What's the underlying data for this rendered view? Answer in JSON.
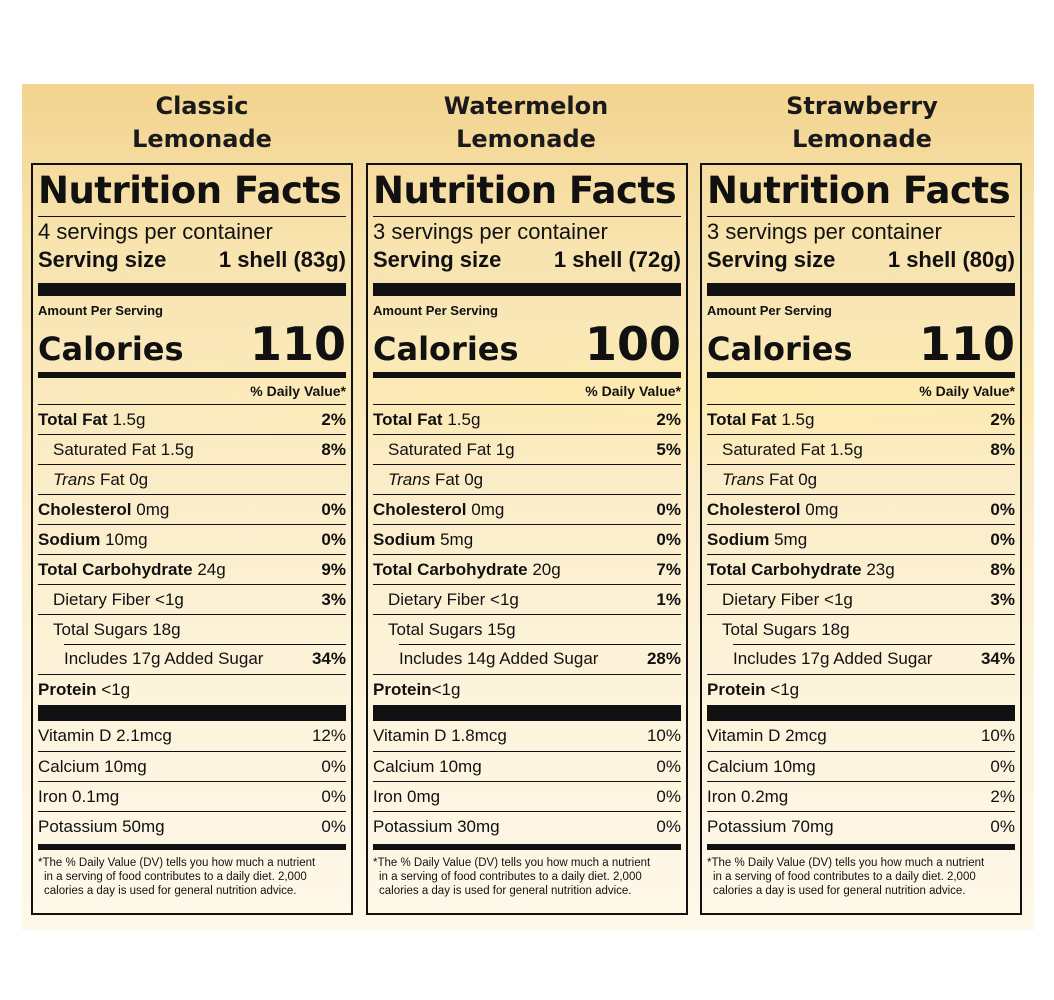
{
  "products": [
    {
      "heading": "Classic\nLemonade",
      "title": "Nutrition Facts",
      "servings_per_container": "4 servings per container",
      "serving_size_label": "Serving size",
      "serving_size_value": "1 shell (83g)",
      "amount_per_serving": "Amount Per Serving",
      "calories_label": "Calories",
      "calories": "110",
      "daily_value_header": "% Daily Value*",
      "nutrients": {
        "total_fat": {
          "label": "Total Fat",
          "amount": "1.5g",
          "dv": "2%"
        },
        "saturated_fat": {
          "label": "Saturated Fat 1.5g",
          "dv": "8%"
        },
        "trans_fat": {
          "label_italic": "Trans",
          "label_rest": "Fat 0g"
        },
        "cholesterol": {
          "label": "Cholesterol",
          "amount": "0mg",
          "dv": "0%"
        },
        "sodium": {
          "label": "Sodium",
          "amount": "10mg",
          "dv": "0%"
        },
        "total_carbohydrate": {
          "label": "Total Carbohydrate",
          "amount": "24g",
          "dv": "9%"
        },
        "dietary_fiber": {
          "label": "Dietary Fiber <1g",
          "dv": "3%"
        },
        "total_sugars": {
          "label": "Total Sugars 18g"
        },
        "added_sugar": {
          "label": "Includes 17g Added Sugar",
          "dv": "34%"
        },
        "protein": {
          "label": "Protein",
          "amount": "<1g"
        }
      },
      "vitamins": [
        {
          "label": "Vitamin D 2.1mcg",
          "dv": "12%"
        },
        {
          "label": "Calcium 10mg",
          "dv": "0%"
        },
        {
          "label": "Iron 0.1mg",
          "dv": "0%"
        },
        {
          "label": "Potassium 50mg",
          "dv": "0%"
        }
      ],
      "footnote": [
        "*The % Daily Value (DV) tells you how much a nutrient",
        "in a serving of food contributes to a daily diet. 2,000",
        "calories a day is used for general nutrition advice."
      ]
    },
    {
      "heading": "Watermelon\nLemonade",
      "title": "Nutrition Facts",
      "servings_per_container": "3 servings per container",
      "serving_size_label": "Serving size",
      "serving_size_value": "1 shell (72g)",
      "amount_per_serving": "Amount Per Serving",
      "calories_label": "Calories",
      "calories": "100",
      "daily_value_header": "% Daily Value*",
      "nutrients": {
        "total_fat": {
          "label": "Total Fat",
          "amount": "1.5g",
          "dv": "2%"
        },
        "saturated_fat": {
          "label": "Saturated Fat 1g",
          "dv": "5%"
        },
        "trans_fat": {
          "label_italic": "Trans",
          "label_rest": "Fat 0g"
        },
        "cholesterol": {
          "label": "Cholesterol",
          "amount": "0mg",
          "dv": "0%"
        },
        "sodium": {
          "label": "Sodium",
          "amount": "5mg",
          "dv": "0%"
        },
        "total_carbohydrate": {
          "label": "Total Carbohydrate",
          "amount": "20g",
          "dv": "7%"
        },
        "dietary_fiber": {
          "label": "Dietary Fiber <1g",
          "dv": "1%"
        },
        "total_sugars": {
          "label": "Total Sugars 15g"
        },
        "added_sugar": {
          "label": "Includes 14g Added Sugar",
          "dv": "28%"
        },
        "protein": {
          "label": "Protein",
          "amount": "<1g"
        }
      },
      "vitamins": [
        {
          "label": "Vitamin D 1.8mcg",
          "dv": "10%"
        },
        {
          "label": "Calcium 10mg",
          "dv": "0%"
        },
        {
          "label": "Iron 0mg",
          "dv": "0%"
        },
        {
          "label": "Potassium 30mg",
          "dv": "0%"
        }
      ],
      "footnote": [
        "*The % Daily Value (DV) tells you how much a nutrient",
        "in a serving of food contributes to a daily diet. 2,000",
        "calories a day is used for general nutrition advice."
      ]
    },
    {
      "heading": "Strawberry\nLemonade",
      "title": "Nutrition Facts",
      "servings_per_container": "3 servings per container",
      "serving_size_label": "Serving size",
      "serving_size_value": "1 shell (80g)",
      "amount_per_serving": "Amount Per Serving",
      "calories_label": "Calories",
      "calories": "110",
      "daily_value_header": "% Daily Value*",
      "nutrients": {
        "total_fat": {
          "label": "Total Fat",
          "amount": "1.5g",
          "dv": "2%"
        },
        "saturated_fat": {
          "label": "Saturated Fat 1.5g",
          "dv": "8%"
        },
        "trans_fat": {
          "label_italic": "Trans",
          "label_rest": "Fat 0g"
        },
        "cholesterol": {
          "label": "Cholesterol",
          "amount": "0mg",
          "dv": "0%"
        },
        "sodium": {
          "label": "Sodium",
          "amount": "5mg",
          "dv": "0%"
        },
        "total_carbohydrate": {
          "label": "Total Carbohydrate",
          "amount": "23g",
          "dv": "8%"
        },
        "dietary_fiber": {
          "label": "Dietary Fiber <1g",
          "dv": "3%"
        },
        "total_sugars": {
          "label": "Total Sugars 18g"
        },
        "added_sugar": {
          "label": "Includes 17g Added Sugar",
          "dv": "34%"
        },
        "protein": {
          "label": "Protein",
          "amount": "<1g"
        }
      },
      "vitamins": [
        {
          "label": "Vitamin D 2mcg",
          "dv": "10%"
        },
        {
          "label": "Calcium 10mg",
          "dv": "0%"
        },
        {
          "label": "Iron 0.2mg",
          "dv": "2%"
        },
        {
          "label": "Potassium 70mg",
          "dv": "0%"
        }
      ],
      "footnote": [
        "*The % Daily Value (DV) tells you how much a nutrient",
        "in a serving of food contributes to a daily diet. 2,000",
        "calories a day is used for general nutrition advice."
      ]
    }
  ]
}
